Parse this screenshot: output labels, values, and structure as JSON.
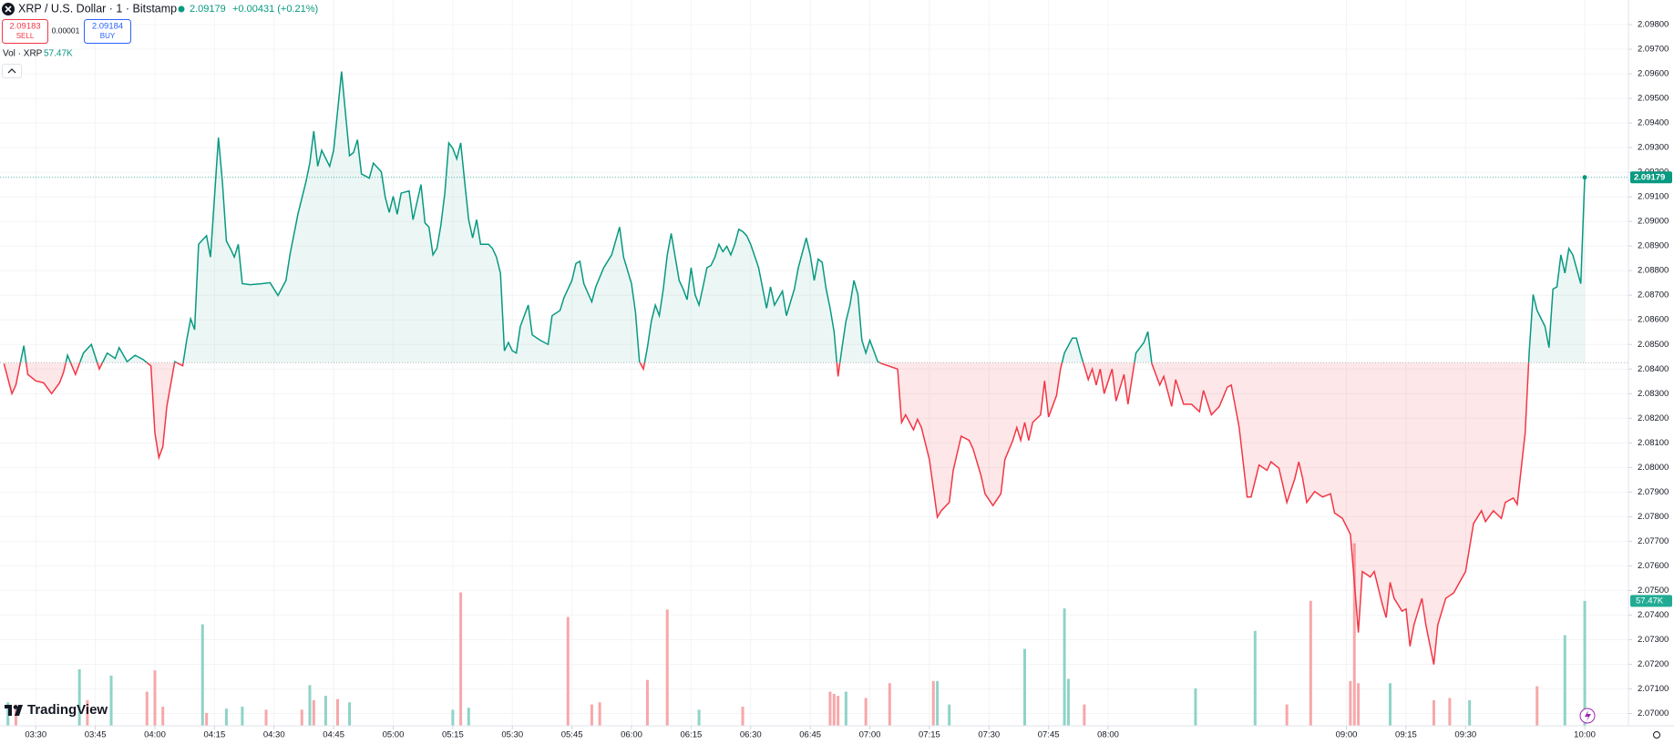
{
  "chart_data": {
    "type": "line",
    "title": "XRP / U.S. Dollar · 1 · Bitstamp",
    "last_label": "2.09179",
    "change": "+0.00431 (+0.21%)",
    "sell": {
      "price": "2.09183",
      "label": "SELL"
    },
    "spread": "0.00001",
    "buy": {
      "price": "2.09184",
      "label": "BUY"
    },
    "logo": "TradingView",
    "up_color": "#089981",
    "down_color": "#f23645",
    "baseline": 2.08426,
    "grid": true,
    "x": [
      "03:22",
      "03:24",
      "03:25",
      "03:27",
      "03:28",
      "03:30",
      "03:32",
      "03:34",
      "03:36",
      "03:37",
      "03:38",
      "03:40",
      "03:42",
      "03:44",
      "03:46",
      "03:48",
      "03:50",
      "03:51",
      "03:53",
      "03:55",
      "03:57",
      "03:59",
      "04:00",
      "04:01",
      "04:02",
      "04:03",
      "04:05",
      "04:07",
      "04:08",
      "04:09",
      "04:10",
      "04:11",
      "04:12",
      "04:13",
      "04:14",
      "04:16",
      "04:17",
      "04:18",
      "04:19",
      "04:20",
      "04:21",
      "04:22",
      "04:24",
      "04:27",
      "04:29",
      "04:31",
      "04:33",
      "04:34",
      "04:36",
      "04:38",
      "04:39",
      "04:40",
      "04:41",
      "04:42",
      "04:44",
      "04:45",
      "04:47",
      "04:49",
      "04:50",
      "04:51",
      "04:52",
      "04:54",
      "04:55",
      "04:57",
      "04:58",
      "04:59",
      "05:00",
      "05:01",
      "05:02",
      "05:04",
      "05:05",
      "05:07",
      "05:08",
      "05:09",
      "05:10",
      "05:11",
      "05:12",
      "05:13",
      "05:14",
      "05:15",
      "05:16",
      "05:17",
      "05:18",
      "05:19",
      "05:20",
      "05:21",
      "05:22",
      "05:24",
      "05:25",
      "05:26",
      "05:27",
      "05:28",
      "05:29",
      "05:30",
      "05:31",
      "05:32",
      "05:34",
      "05:35",
      "05:37",
      "05:39",
      "05:40",
      "05:42",
      "05:43",
      "05:44",
      "05:45",
      "05:46",
      "05:47",
      "05:48",
      "05:50",
      "05:51",
      "05:53",
      "05:55",
      "05:57",
      "05:58",
      "06:00",
      "06:01",
      "06:02",
      "06:03",
      "06:04",
      "06:05",
      "06:06",
      "06:07",
      "06:08",
      "06:09",
      "06:10",
      "06:11",
      "06:12",
      "06:13",
      "06:14",
      "06:15",
      "06:16",
      "06:17",
      "06:18",
      "06:19",
      "06:20",
      "06:21",
      "06:22",
      "06:23",
      "06:24",
      "06:25",
      "06:26",
      "06:27",
      "06:28",
      "06:29",
      "06:30",
      "06:32",
      "06:34",
      "06:35",
      "06:36",
      "06:38",
      "06:39",
      "06:41",
      "06:42",
      "06:44",
      "06:45",
      "06:46",
      "06:47",
      "06:48",
      "06:49",
      "06:50",
      "06:51",
      "06:52",
      "06:53",
      "06:54",
      "06:55",
      "06:56",
      "06:57",
      "06:58",
      "06:59",
      "07:00",
      "07:01",
      "07:02",
      "07:03",
      "07:07",
      "07:08",
      "07:09",
      "07:11",
      "07:12",
      "07:13",
      "07:15",
      "07:17",
      "07:18",
      "07:20",
      "07:21",
      "07:23",
      "07:25",
      "07:26",
      "07:28",
      "07:29",
      "07:31",
      "07:33",
      "07:34",
      "07:36",
      "07:37",
      "07:38",
      "07:39",
      "07:40",
      "07:41",
      "07:43",
      "07:44",
      "07:45",
      "07:47",
      "07:48",
      "07:49",
      "07:51",
      "07:52",
      "07:53",
      "07:55",
      "07:56",
      "07:57",
      "07:58",
      "07:59",
      "08:01",
      "08:02",
      "08:04",
      "08:05",
      "08:07",
      "08:09",
      "08:10",
      "08:11",
      "08:13",
      "08:14",
      "08:16",
      "08:17",
      "08:19",
      "08:21",
      "08:23",
      "08:24",
      "08:26",
      "08:28",
      "08:30",
      "08:31",
      "08:33",
      "08:35",
      "08:36",
      "08:38",
      "08:40",
      "08:41",
      "08:43",
      "08:45",
      "08:47",
      "08:48",
      "08:49",
      "08:50",
      "08:52",
      "08:54",
      "08:56",
      "08:57",
      "08:59",
      "09:01",
      "09:02",
      "09:03",
      "09:04",
      "09:06",
      "09:07",
      "09:09",
      "09:10",
      "09:11",
      "09:12",
      "09:14",
      "09:15",
      "09:16",
      "09:17",
      "09:19",
      "09:20",
      "09:22",
      "09:23",
      "09:25",
      "09:27",
      "09:30",
      "09:32",
      "09:34",
      "09:35",
      "09:37",
      "09:39",
      "09:40",
      "09:42",
      "09:43",
      "09:45",
      "09:46",
      "09:47",
      "09:48",
      "09:50",
      "09:51",
      "09:52",
      "09:53",
      "09:54",
      "09:55",
      "09:56",
      "09:57",
      "09:59",
      "10:00"
    ],
    "values": [
      2.08422,
      2.083,
      2.08335,
      2.08495,
      2.08378,
      2.08352,
      2.08344,
      2.083,
      2.08344,
      2.08387,
      2.08456,
      2.08378,
      2.08465,
      2.085,
      2.084,
      2.08465,
      2.08443,
      2.08487,
      2.0843,
      2.08456,
      2.08439,
      2.08413,
      2.0814,
      2.0804,
      2.08084,
      2.08248,
      2.0843,
      2.08413,
      2.08517,
      2.08604,
      2.0856,
      2.08907,
      2.08925,
      2.08942,
      2.08855,
      2.09341,
      2.09159,
      2.0892,
      2.0889,
      2.08855,
      2.08907,
      2.08747,
      2.08743,
      2.08747,
      2.08751,
      2.08699,
      2.0876,
      2.08864,
      2.09029,
      2.09159,
      2.09237,
      2.09367,
      2.09224,
      2.09289,
      2.09224,
      2.09289,
      2.09609,
      2.09267,
      2.0928,
      2.09332,
      2.09193,
      2.09176,
      2.09237,
      2.09202,
      2.09098,
      2.09037,
      2.09102,
      2.09029,
      2.09115,
      2.09124,
      2.09007,
      2.0915,
      2.08994,
      2.08977,
      2.08864,
      2.0889,
      2.08985,
      2.09115,
      2.09319,
      2.09297,
      2.09254,
      2.09319,
      2.09159,
      2.09007,
      2.08933,
      2.09007,
      2.08907,
      2.08907,
      2.0889,
      2.08855,
      2.0879,
      2.08474,
      2.08508,
      2.08474,
      2.08465,
      2.08573,
      2.0866,
      2.08539,
      2.08517,
      2.085,
      2.08617,
      2.08638,
      2.0869,
      2.08725,
      2.0876,
      2.08829,
      2.08838,
      2.08747,
      2.08673,
      2.08734,
      2.08812,
      2.08864,
      2.08977,
      2.08855,
      2.08747,
      2.0863,
      2.0843,
      2.084,
      2.08487,
      2.08595,
      2.0866,
      2.08617,
      2.08725,
      2.08864,
      2.08951,
      2.08855,
      2.0876,
      2.08725,
      2.08682,
      2.08812,
      2.08703,
      2.0866,
      2.08734,
      2.08812,
      2.08821,
      2.08855,
      2.08907,
      2.08877,
      2.08899,
      2.08864,
      2.08907,
      2.08968,
      2.08959,
      2.08942,
      2.08907,
      2.08812,
      2.08647,
      2.08734,
      2.0866,
      2.08717,
      2.08617,
      2.08725,
      2.08812,
      2.08933,
      2.08864,
      2.0876,
      2.08847,
      2.08834,
      2.08725,
      2.08647,
      2.08552,
      2.0837,
      2.08487,
      2.08595,
      2.0866,
      2.0876,
      2.08703,
      2.08517,
      2.08465,
      2.08517,
      2.08474,
      2.0843,
      2.08422,
      2.084,
      2.08183,
      2.08214,
      2.08153,
      2.08196,
      2.08162,
      2.08032,
      2.07798,
      2.07824,
      2.07858,
      2.07988,
      2.08127,
      2.0811,
      2.08075,
      2.07967,
      2.07893,
      2.07845,
      2.07893,
      2.08032,
      2.0811,
      2.08162,
      2.0811,
      2.08183,
      2.0811,
      2.08183,
      2.08214,
      2.08352,
      2.08205,
      2.08292,
      2.084,
      2.08465,
      2.08526,
      2.08526,
      2.08465,
      2.08357,
      2.084,
      2.08335,
      2.084,
      2.083,
      2.084,
      2.0827,
      2.08378,
      2.08257,
      2.08465,
      2.08508,
      2.08552,
      2.08422,
      2.08335,
      2.0837,
      2.08248,
      2.08357,
      2.08257,
      2.08257,
      2.08227,
      2.08313,
      2.08214,
      2.08248,
      2.08326,
      2.08335,
      2.08162,
      2.0788,
      2.0788,
      2.0801,
      2.07988,
      2.08023,
      2.07997,
      2.07858,
      2.07954,
      2.08023,
      2.07954,
      2.07858,
      2.07902,
      2.0788,
      2.07893,
      2.07815,
      2.07793,
      2.07728,
      2.07533,
      2.07329,
      2.07577,
      2.07555,
      2.07577,
      2.07446,
      2.0739,
      2.07533,
      2.07468,
      2.07416,
      2.07425,
      2.07273,
      2.0736,
      2.07468,
      2.0736,
      2.07199,
      2.0736,
      2.07468,
      2.0749,
      2.07577,
      2.07772,
      2.07824,
      2.0778,
      2.07824,
      2.07793,
      2.07858,
      2.07876,
      2.0785,
      2.0814,
      2.08465,
      2.08703,
      2.08638,
      2.08573,
      2.08487,
      2.08725,
      2.08734,
      2.08864,
      2.0879,
      2.0889,
      2.08864,
      2.08747,
      2.09179
    ],
    "volume": {
      "name": "Vol · XRP",
      "last_label": "57.47K",
      "x": [
        "03:23",
        "03:25",
        "03:41",
        "03:43",
        "03:49",
        "03:58",
        "04:00",
        "04:02",
        "04:12",
        "04:13",
        "04:18",
        "04:22",
        "04:28",
        "04:37",
        "04:39",
        "04:40",
        "04:43",
        "04:46",
        "04:49",
        "05:15",
        "05:17",
        "05:19",
        "05:44",
        "05:50",
        "05:52",
        "06:04",
        "06:09",
        "06:17",
        "06:28",
        "06:50",
        "06:51",
        "06:52",
        "06:54",
        "06:59",
        "07:05",
        "07:16",
        "07:17",
        "07:20",
        "07:39",
        "07:49",
        "07:50",
        "07:54",
        "08:22",
        "08:37",
        "08:45",
        "08:51",
        "09:01",
        "09:02",
        "09:03",
        "09:11",
        "09:22",
        "09:26",
        "09:31",
        "09:48",
        "09:55",
        "10:00"
      ],
      "values": [
        10800,
        9800,
        26000,
        11800,
        23100,
        15700,
        25500,
        8800,
        46700,
        5900,
        7900,
        8800,
        7400,
        7400,
        18700,
        11800,
        13800,
        12300,
        10800,
        7400,
        61400,
        8300,
        50100,
        9800,
        10800,
        21100,
        53500,
        7400,
        8800,
        15700,
        14700,
        13800,
        15700,
        12800,
        19600,
        20600,
        20600,
        9800,
        35400,
        54000,
        21600,
        9800,
        17200,
        43700,
        9800,
        57500,
        20600,
        84000,
        19600,
        19600,
        11800,
        12800,
        11800,
        18200,
        41700,
        57470
      ],
      "colors": [
        "#8fd3c8",
        "#f7a7a9",
        "#8fd3c8",
        "#f7a7a9",
        "#8fd3c8",
        "#f7a7a9",
        "#f7a7a9",
        "#f7a7a9",
        "#8fd3c8",
        "#f7a7a9",
        "#8fd3c8",
        "#8fd3c8",
        "#f7a7a9",
        "#f7a7a9",
        "#8fd3c8",
        "#f7a7a9",
        "#8fd3c8",
        "#f7a7a9",
        "#8fd3c8",
        "#8fd3c8",
        "#f7a7a9",
        "#8fd3c8",
        "#f7a7a9",
        "#f7a7a9",
        "#f7a7a9",
        "#f7a7a9",
        "#f7a7a9",
        "#8fd3c8",
        "#f7a7a9",
        "#f7a7a9",
        "#f7a7a9",
        "#f7a7a9",
        "#8fd3c8",
        "#f7a7a9",
        "#f7a7a9",
        "#f7a7a9",
        "#8fd3c8",
        "#8fd3c8",
        "#8fd3c8",
        "#8fd3c8",
        "#8fd3c8",
        "#f7a7a9",
        "#8fd3c8",
        "#8fd3c8",
        "#f7a7a9",
        "#f7a7a9",
        "#f7a7a9",
        "#f7a7a9",
        "#f7a7a9",
        "#8fd3c8",
        "#f7a7a9",
        "#f7a7a9",
        "#8fd3c8",
        "#f7a7a9",
        "#8fd3c8",
        "#8fd3c8"
      ]
    },
    "xlim": [
      "03:21",
      "10:11"
    ],
    "xticks": [
      "03:30",
      "03:45",
      "04:00",
      "04:15",
      "04:30",
      "04:45",
      "05:00",
      "05:15",
      "05:30",
      "05:45",
      "06:00",
      "06:15",
      "06:30",
      "06:45",
      "07:00",
      "07:15",
      "07:30",
      "07:45",
      "08:00",
      "09:00",
      "09:15",
      "09:30",
      "10:00"
    ],
    "ylim": [
      2.0695,
      2.099
    ],
    "yticks": [
      {
        "value": 2.07,
        "label": "2.07000"
      },
      {
        "value": 2.071,
        "label": "2.07100"
      },
      {
        "value": 2.072,
        "label": "2.07200"
      },
      {
        "value": 2.073,
        "label": "2.07300"
      },
      {
        "value": 2.074,
        "label": "2.07400"
      },
      {
        "value": 2.075,
        "label": "2.07500"
      },
      {
        "value": 2.076,
        "label": "2.07600"
      },
      {
        "value": 2.077,
        "label": "2.07700"
      },
      {
        "value": 2.078,
        "label": "2.07800"
      },
      {
        "value": 2.079,
        "label": "2.07900"
      },
      {
        "value": 2.08,
        "label": "2.08000"
      },
      {
        "value": 2.081,
        "label": "2.08100"
      },
      {
        "value": 2.082,
        "label": "2.08200"
      },
      {
        "value": 2.083,
        "label": "2.08300"
      },
      {
        "value": 2.084,
        "label": "2.08400"
      },
      {
        "value": 2.085,
        "label": "2.08500"
      },
      {
        "value": 2.086,
        "label": "2.08600"
      },
      {
        "value": 2.087,
        "label": "2.08700"
      },
      {
        "value": 2.088,
        "label": "2.08800"
      },
      {
        "value": 2.089,
        "label": "2.08900"
      },
      {
        "value": 2.09,
        "label": "2.09000"
      },
      {
        "value": 2.091,
        "label": "2.09100"
      },
      {
        "value": 2.092,
        "label": "2.09200"
      },
      {
        "value": 2.093,
        "label": "2.09300"
      },
      {
        "value": 2.094,
        "label": "2.09400"
      },
      {
        "value": 2.095,
        "label": "2.09500"
      },
      {
        "value": 2.096,
        "label": "2.09600"
      },
      {
        "value": 2.097,
        "label": "2.09700"
      },
      {
        "value": 2.098,
        "label": "2.09800"
      }
    ],
    "y2lim": [
      0,
      334000
    ]
  }
}
